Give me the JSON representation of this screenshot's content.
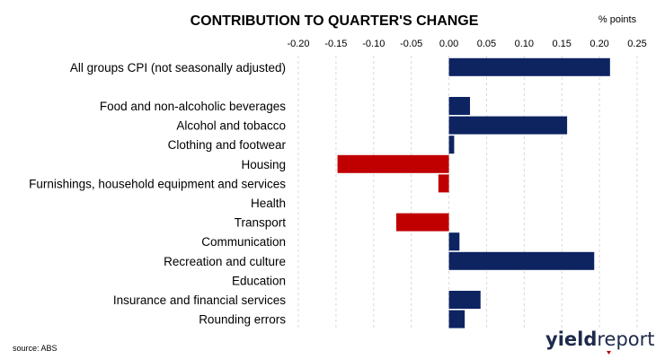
{
  "chart_data": {
    "type": "bar",
    "orientation": "horizontal",
    "title": "CONTRIBUTION TO QUARTER'S CHANGE",
    "units_label": "% points",
    "source": "source: ABS",
    "xlim": [
      -0.2,
      0.25
    ],
    "ticks": [
      "-0.20",
      "-0.15",
      "-0.10",
      "-0.05",
      "0.00",
      "0.05",
      "0.10",
      "0.15",
      "0.20",
      "0.25"
    ],
    "tick_values": [
      -0.2,
      -0.15,
      -0.1,
      -0.05,
      0.0,
      0.05,
      0.1,
      0.15,
      0.2,
      0.25
    ],
    "grid": true,
    "categories": [
      "All groups CPI (not seasonally adjusted)",
      "",
      "Food and non-alcoholic beverages",
      "Alcohol and tobacco",
      "Clothing and footwear",
      "Housing",
      "Furnishings, household equipment and services",
      "Health",
      "Transport",
      "Communication",
      "Recreation and culture",
      "Education",
      "Insurance and financial services",
      "Rounding errors"
    ],
    "values": [
      0.214,
      null,
      0.028,
      0.157,
      0.007,
      -0.148,
      -0.014,
      0.0,
      -0.07,
      0.014,
      0.193,
      0.0,
      0.042,
      0.021
    ],
    "colors": {
      "positive": "#0d2461",
      "negative": "#c00000",
      "grid": "#d9d9d9"
    }
  },
  "logo": {
    "part1": "yield",
    "part2": "report",
    "color": "#1e2a4a",
    "accent": "#c00000"
  }
}
